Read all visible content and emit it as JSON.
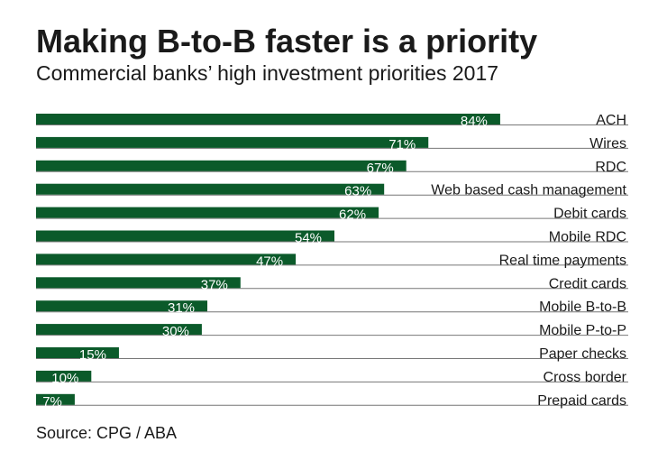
{
  "chart_data": {
    "type": "bar",
    "orientation": "horizontal",
    "title": "Making B-to-B faster is a priority",
    "subtitle": "Commercial banks’ high investment priorities 2017",
    "source": "Source: CPG / ABA",
    "categories": [
      "ACH",
      "Wires",
      "RDC",
      "Web based cash management",
      "Debit cards",
      "Mobile RDC",
      "Real time payments",
      "Credit cards",
      "Mobile B-to-B",
      "Mobile P-to-P",
      "Paper checks",
      "Cross border",
      "Prepaid cards"
    ],
    "values": [
      84,
      71,
      67,
      63,
      62,
      54,
      47,
      37,
      31,
      30,
      15,
      10,
      7
    ],
    "value_labels": [
      "84%",
      "71%",
      "67%",
      "63%",
      "62%",
      "54%",
      "47%",
      "37%",
      "31%",
      "30%",
      "15%",
      "10%",
      "7%"
    ],
    "color": "#0b5a2a"
  }
}
